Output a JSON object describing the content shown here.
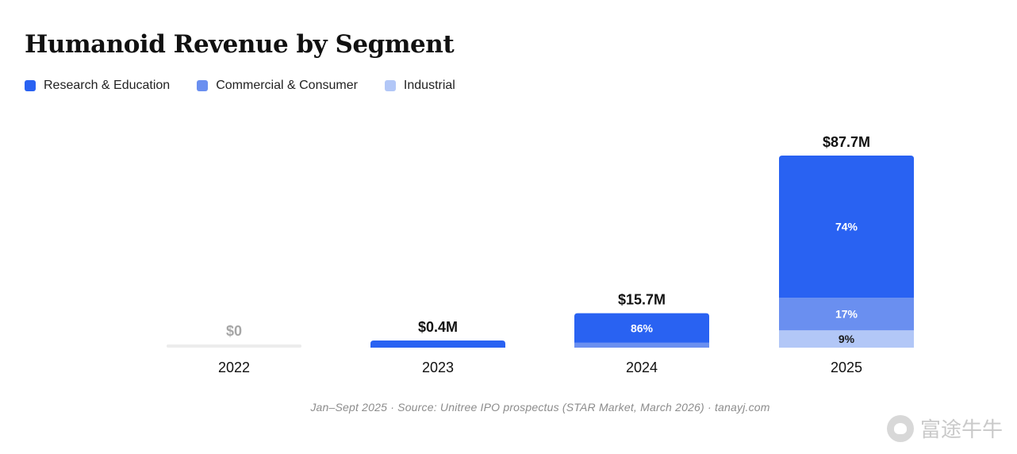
{
  "title": "Humanoid Revenue by Segment",
  "legend": [
    {
      "label": "Research & Education",
      "color": "#2962f2"
    },
    {
      "label": "Commercial & Consumer",
      "color": "#6a8ff0"
    },
    {
      "label": "Industrial",
      "color": "#b2c7f7"
    }
  ],
  "source": "Jan–Sept 2025  ·  Source: Unitree IPO prospectus (STAR Market, March 2026)  ·  tanayj.com",
  "watermark": "富途牛牛",
  "chart_data": {
    "type": "bar",
    "stacked": true,
    "categories": [
      "2022",
      "2023",
      "2024",
      "2025"
    ],
    "totals": [
      0,
      0.4,
      15.7,
      87.7
    ],
    "total_labels": [
      "$0",
      "$0.4M",
      "$15.7M",
      "$87.7M"
    ],
    "series": [
      {
        "name": "Research & Education",
        "share": [
          0,
          1.0,
          0.86,
          0.74
        ],
        "labels": [
          "",
          "",
          "86%",
          "74%"
        ]
      },
      {
        "name": "Commercial & Consumer",
        "share": [
          0,
          0,
          0.14,
          0.17
        ],
        "labels": [
          "",
          "",
          "",
          "17%"
        ]
      },
      {
        "name": "Industrial",
        "share": [
          0,
          0,
          0,
          0.09
        ],
        "labels": [
          "",
          "",
          "",
          "9%"
        ]
      }
    ],
    "colors": [
      "#2962f2",
      "#6a8ff0",
      "#b2c7f7"
    ],
    "ylim": [
      0,
      87.7
    ],
    "grid": false,
    "legend_position": "top-left"
  }
}
